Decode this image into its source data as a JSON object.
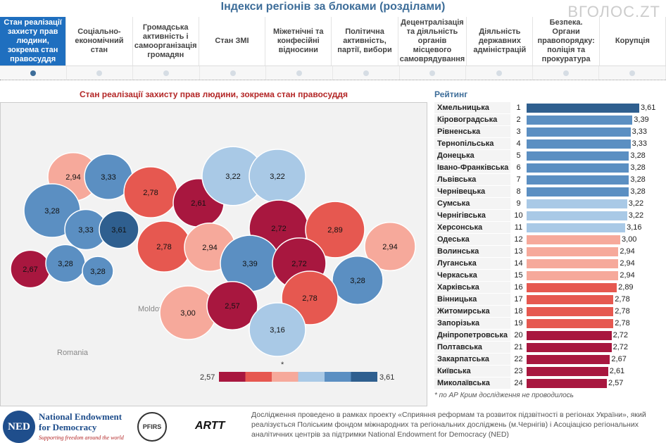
{
  "header": {
    "title": "Індекси регіонів за блоками (розділами)",
    "watermark": "ВГОЛОС.ZT"
  },
  "tabs": [
    "Стан реалізації захисту прав людини, зокрема стан правосуддя",
    "Соціально-економічний стан",
    "Громадська активність і самоорганізація громадян",
    "Стан ЗМІ",
    "Міжетнічні та конфесійні відносини",
    "Політична активність, партії, вибори",
    "Децентралізація та діяльність органів місцевого самоврядування",
    "Діяльність державних адміністрацій",
    "Безпека. Органи правопорядку: поліція та прокуратура",
    "Корупція"
  ],
  "map_labels": {
    "moldova": "Moldova",
    "romania": "Romania",
    "asterisk": "*"
  },
  "colors": {
    "c1": "#a8173f",
    "c2": "#e65850",
    "c3": "#f6a99b",
    "c4": "#a9c9e6",
    "c5": "#5b8fc2",
    "c6": "#2f5f8f"
  },
  "chart_data": {
    "type": "table",
    "title": "Стан реалізації захисту прав людини, зокрема стан правосуддя",
    "ranking_title": "Рейтинг",
    "legend_min": "2,57",
    "legend_max": "3,61",
    "rows": [
      {
        "name": "Хмельницька",
        "rank": "1",
        "value": "3,61"
      },
      {
        "name": "Кіровоградська",
        "rank": "2",
        "value": "3,39"
      },
      {
        "name": "Рівненська",
        "rank": "3",
        "value": "3,33"
      },
      {
        "name": "Тернопільська",
        "rank": "4",
        "value": "3,33"
      },
      {
        "name": "Донецька",
        "rank": "5",
        "value": "3,28"
      },
      {
        "name": "Івано-Франківська",
        "rank": "6",
        "value": "3,28"
      },
      {
        "name": "Львівська",
        "rank": "7",
        "value": "3,28"
      },
      {
        "name": "Чернівецька",
        "rank": "8",
        "value": "3,28"
      },
      {
        "name": "Сумська",
        "rank": "9",
        "value": "3,22"
      },
      {
        "name": "Чернігівська",
        "rank": "10",
        "value": "3,22"
      },
      {
        "name": "Херсонська",
        "rank": "11",
        "value": "3,16"
      },
      {
        "name": "Одеська",
        "rank": "12",
        "value": "3,00"
      },
      {
        "name": "Волинська",
        "rank": "13",
        "value": "2,94"
      },
      {
        "name": "Луганська",
        "rank": "14",
        "value": "2,94"
      },
      {
        "name": "Черкаська",
        "rank": "15",
        "value": "2,94"
      },
      {
        "name": "Харківська",
        "rank": "16",
        "value": "2,89"
      },
      {
        "name": "Вінницька",
        "rank": "17",
        "value": "2,78"
      },
      {
        "name": "Житомирська",
        "rank": "18",
        "value": "2,78"
      },
      {
        "name": "Запорізька",
        "rank": "19",
        "value": "2,78"
      },
      {
        "name": "Дніпропетровська",
        "rank": "20",
        "value": "2,72"
      },
      {
        "name": "Полтавська",
        "rank": "21",
        "value": "2,72"
      },
      {
        "name": "Закарпатська",
        "rank": "22",
        "value": "2,67"
      },
      {
        "name": "Київська",
        "rank": "23",
        "value": "2,61"
      },
      {
        "name": "Миколаївська",
        "rank": "24",
        "value": "2,57"
      }
    ]
  },
  "note": "по АР Крим дослідження не проводилось",
  "footer": {
    "ned_title": "National Endowment for Democracy",
    "ned_tagline": "Supporting freedom around the world",
    "ned_abbr": "NED",
    "pfirs": "PFIRS",
    "artt": "ARTT",
    "text": "Дослідження проведено в рамках проекту «Сприяння реформам та розвиток підзвітності в регіонах України», який реалізується  Поліським фондом міжнародних та регіональних досліджень (м.Чернігів) і Асоціацією регіональних аналітичних центрів за підтримки National Endowment for Democracy (NED)"
  }
}
